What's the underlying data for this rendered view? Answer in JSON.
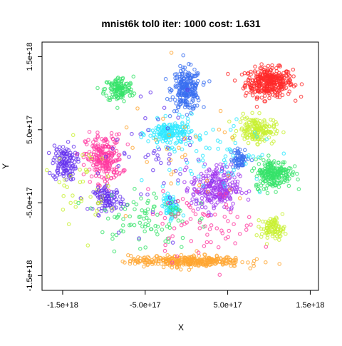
{
  "chart_data": {
    "type": "scatter",
    "title": "mnist6k tol0 iter: 1000 cost: 1.631",
    "xlabel": "X",
    "ylabel": "Y",
    "xlim": [
      -1.75e+18,
      1.6e+18
    ],
    "ylim": [
      -1.7e+18,
      1.7e+18
    ],
    "x_ticks": [
      {
        "value": -1.5e+18,
        "label": "-1.5e+18"
      },
      {
        "value": -5e+17,
        "label": "-5.0e+17"
      },
      {
        "value": 5e+17,
        "label": "5.0e+17"
      },
      {
        "value": 1.5e+18,
        "label": "1.5e+18"
      }
    ],
    "y_ticks": [
      {
        "value": 1.5e+18,
        "label": "1.5e+18"
      },
      {
        "value": 5e+17,
        "label": "5.0e+17"
      },
      {
        "value": -5e+17,
        "label": "-5.0e+17"
      },
      {
        "value": -1.5e+18,
        "label": "-1.5e+18"
      }
    ],
    "grid": false,
    "legend": "none",
    "marker": "open-circle",
    "clusters": [
      {
        "color": "#ff2a2a",
        "center": [
          1e+18,
          1.15e+18
        ],
        "spread": [
          2.6e+17,
          1.8e+17
        ],
        "points": 340
      },
      {
        "color": "#3a6ff0",
        "center": [
          0.0,
          1.05e+18
        ],
        "spread": [
          1.6e+17,
          2.6e+17
        ],
        "points": 230
      },
      {
        "color": "#35e36a",
        "center": [
          -8.2e+17,
          1.05e+18
        ],
        "spread": [
          1.6e+17,
          1.6e+17
        ],
        "points": 130
      },
      {
        "color": "#6633ee",
        "center": [
          -1.48e+18,
          5e+16
        ],
        "spread": [
          1.3e+17,
          2.2e+17
        ],
        "points": 120
      },
      {
        "color": "#ff3aa0",
        "center": [
          -1e+18,
          1e+17
        ],
        "spread": [
          2e+17,
          3e+17
        ],
        "points": 230
      },
      {
        "color": "#6633ee",
        "center": [
          -9.5e+17,
          -4.5e+17
        ],
        "spread": [
          1.6e+17,
          1.4e+17
        ],
        "points": 90
      },
      {
        "color": "#2ee8ff",
        "center": [
          -2e+17,
          4.5e+17
        ],
        "spread": [
          2.4e+17,
          1.6e+17
        ],
        "points": 180
      },
      {
        "color": "#c8f032",
        "center": [
          8.5e+17,
          5e+17
        ],
        "spread": [
          2e+17,
          1.6e+17
        ],
        "points": 170
      },
      {
        "color": "#a038ef",
        "center": [
          3.5e+17,
          -3e+17
        ],
        "spread": [
          2.6e+17,
          2.8e+17
        ],
        "points": 260
      },
      {
        "color": "#35e36a",
        "center": [
          1.05e+18,
          -1e+17
        ],
        "spread": [
          2e+17,
          1.8e+17
        ],
        "points": 220
      },
      {
        "color": "#c8f032",
        "center": [
          1.05e+18,
          -8.5e+17
        ],
        "spread": [
          1.3e+17,
          1.3e+17
        ],
        "points": 90
      },
      {
        "color": "#2ee8ff",
        "center": [
          -2e+17,
          -5.5e+17
        ],
        "spread": [
          8e+16,
          1.4e+17
        ],
        "points": 70
      },
      {
        "color": "#ffa632",
        "center": [
          0.0,
          -1.3e+18
        ],
        "spread": [
          6.2e+17,
          7e+16
        ],
        "points": 330
      },
      {
        "color": "#3a6ff0",
        "center": [
          6.5e+17,
          1e+17
        ],
        "spread": [
          1e+17,
          1.2e+17
        ],
        "points": 60
      },
      {
        "color": "#c8f032",
        "center": [
          -1.3e+18,
          -2.5e+17
        ],
        "spread": [
          3e+17,
          5e+17
        ],
        "points": 40
      },
      {
        "color": "#35e36a",
        "center": [
          -5e+17,
          -7e+17
        ],
        "spread": [
          5e+17,
          4e+17
        ],
        "points": 90
      },
      {
        "color": "#ff3aa0",
        "center": [
          2e+17,
          -8e+17
        ],
        "spread": [
          6e+17,
          4e+17
        ],
        "points": 70
      },
      {
        "color": "#2ee8ff",
        "center": [
          4e+17,
          1e+17
        ],
        "spread": [
          6e+17,
          6e+17
        ],
        "points": 60
      },
      {
        "color": "#6633ee",
        "center": [
          -3e+17,
          0.0
        ],
        "spread": [
          7e+17,
          7e+17
        ],
        "points": 60
      },
      {
        "color": "#ffa632",
        "center": [
          0.0,
          1e+17
        ],
        "spread": [
          8e+17,
          8e+17
        ],
        "points": 30
      }
    ]
  }
}
